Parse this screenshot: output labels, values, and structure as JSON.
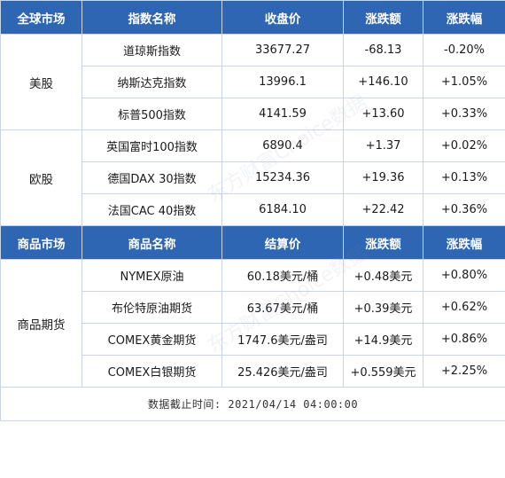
{
  "header1": [
    "全球市场",
    "指数名称",
    "收盘价",
    "涨跌额",
    "涨跌幅"
  ],
  "us": {
    "region": "美股",
    "rows": [
      [
        "道琼斯指数",
        "33677.27",
        "-68.13",
        "-0.20%"
      ],
      [
        "纳斯达克指数",
        "13996.1",
        "+146.10",
        "+1.05%"
      ],
      [
        "标普500指数",
        "4141.59",
        "+13.60",
        "+0.33%"
      ]
    ]
  },
  "eu": {
    "region": "欧股",
    "rows": [
      [
        "英国富时100指数",
        "6890.4",
        "+1.37",
        "+0.02%"
      ],
      [
        "德国DAX 30指数",
        "15234.36",
        "+19.36",
        "+0.13%"
      ],
      [
        "法国CAC 40指数",
        "6184.10",
        "+22.42",
        "+0.36%"
      ]
    ]
  },
  "header2": [
    "商品市场",
    "商品名称",
    "结算价",
    "涨跌额",
    "涨跌幅"
  ],
  "commodity": {
    "region": "商品期货",
    "rows": [
      [
        "NYMEX原油",
        "60.18美元/桶",
        "+0.48美元",
        "+0.80%"
      ],
      [
        "布伦特原油期货",
        "63.67美元/桶",
        "+0.39美元",
        "+0.62%"
      ],
      [
        "COMEX黄金期货",
        "1747.6美元/盎司",
        "+14.9美元",
        "+0.86%"
      ],
      [
        "COMEX白银期货",
        "25.426美元/盎司",
        "+0.559美元",
        "+2.25%"
      ]
    ]
  },
  "footer": "数据截止时间: 2021/04/14 04:00:00",
  "watermark": "东方财富Choice数据"
}
